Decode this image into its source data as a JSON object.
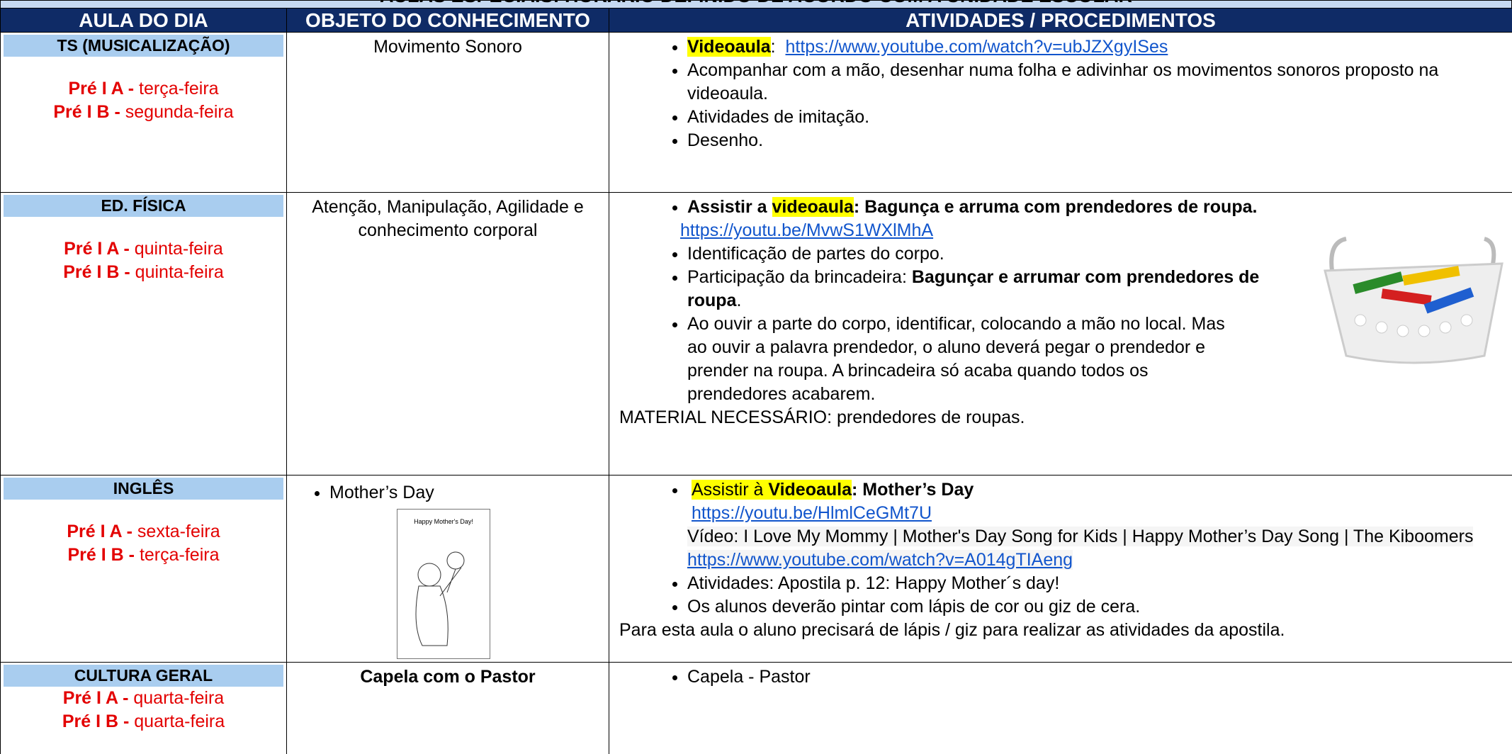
{
  "header": {
    "title": "AULAS ESPECIAIS: HORÁRIO DEFINIDO DE ACORDO COM A UNIDADE ESCOLAR",
    "columns": [
      "AULA DO DIA",
      "OBJETO DO CONHECIMENTO",
      "ATIVIDADES / PROCEDIMENTOS"
    ]
  },
  "table": {
    "rows": [
      {
        "subject": "TS (MUSICALIZAÇÃO)",
        "schedule": [
          [
            "Pré I A -",
            "terça-feira"
          ],
          [
            "Pré I B -",
            "segunda-feira"
          ]
        ],
        "objective": "Movimento Sonoro",
        "activities": [
          [
            "Videoaula",
            ":",
            "https://www.youtube.com/watch?v=ubJZXgyISes"
          ],
          [
            "Acompanhar com a mão, desenhar numa folha e adivinhar os movimentos sonoros proposto na videoaula."
          ],
          [
            "Atividades de imitação."
          ],
          [
            "Desenho."
          ]
        ]
      },
      {
        "subject": "ED. FÍSICA",
        "schedule": [
          [
            "Pré I A -",
            "quinta-feira"
          ],
          [
            "Pré I B -",
            "quinta-feira"
          ]
        ],
        "objective": "Atenção, Manipulação, Agilidade e conhecimento corporal",
        "activities": [
          [
            "Assistir a",
            "videoaula",
            ":  Bagunça e arruma com prendedores de roupa.",
            "https://youtu.be/MvwS1WXlMhA"
          ],
          [
            "Identificação de partes do corpo."
          ],
          [
            "Participação da brincadeira:",
            "Bagunçar e arrumar com prendedores de roupa",
            "."
          ],
          [
            "Ao ouvir a parte do corpo, identificar, colocando a mão no local. Mas ao ouvir a palavra prendedor, o aluno deverá pegar o prendedor e prender na roupa. A brincadeira só acaba quando todos os prendedores acabarem."
          ]
        ],
        "note": "MATERIAL NECESSÁRIO:  prendedores de roupas."
      },
      {
        "subject": "INGLÊS",
        "schedule": [
          [
            "Pré I A -",
            "sexta-feira"
          ],
          [
            "Pré I B -",
            "terça-feira"
          ]
        ],
        "objective": "Mother’s Day",
        "worksheet_title": "Happy Mother's Day!",
        "activities": [
          [
            "Assistir à",
            "Videoaula",
            ": Mother’s Day",
            "https://youtu.be/HlmlCeGMt7U",
            "Vídeo: I Love My Mommy | Mother's Day Song for Kids | Happy Mother’s Day Song | The Kiboomers",
            "https://www.youtube.com/watch?v=A014gTIAeng"
          ],
          [
            "Atividades:  Apostila p. 12: Happy Mother´s day!"
          ],
          [
            "Os alunos deverão pintar com lápis de cor ou giz de cera."
          ]
        ],
        "note": "Para esta aula o aluno precisará de lápis / giz para realizar as atividades da apostila."
      },
      {
        "subject": "CULTURA GERAL",
        "schedule": [
          [
            "Pré I A -",
            "quarta-feira"
          ],
          [
            "Pré I B -",
            "quarta-feira"
          ]
        ],
        "objective": "Capela com o Pastor",
        "activities": [
          [
            "Capela - Pastor"
          ]
        ]
      }
    ]
  }
}
